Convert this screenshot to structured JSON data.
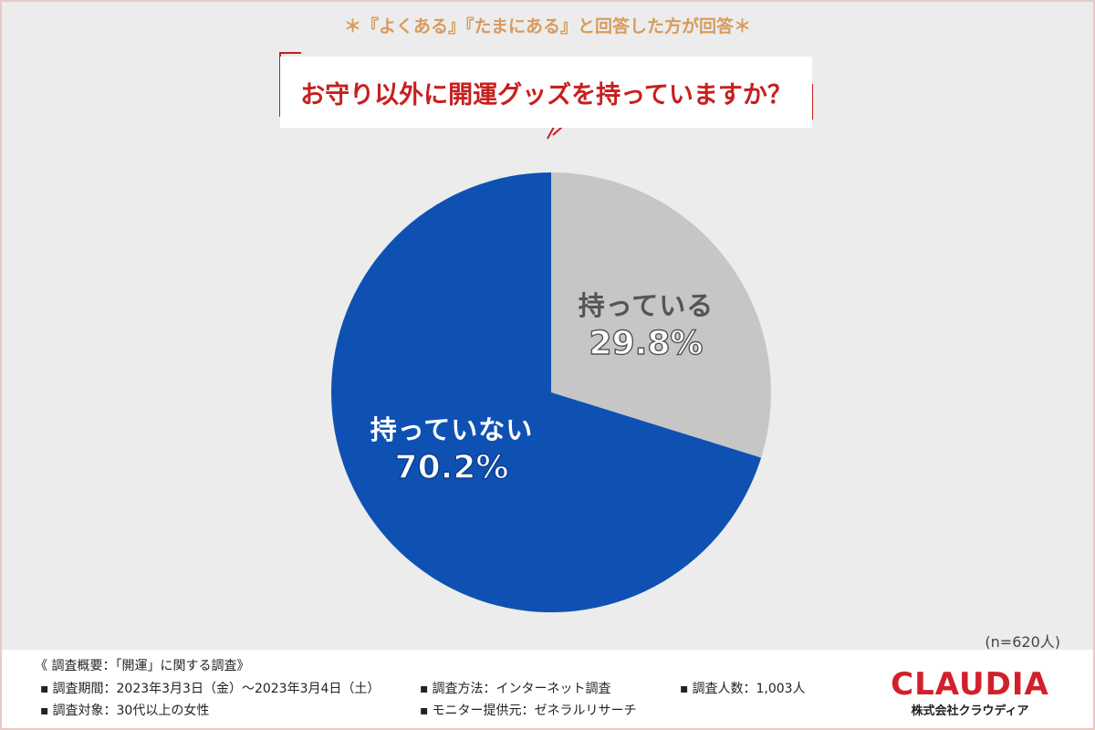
{
  "header": {
    "subtitle": "＊『よくある』『たまにある』と回答した方が回答＊",
    "question": "お守り以外に開運グッズを持っていますか？"
  },
  "chart_data": {
    "type": "pie",
    "categories": [
      "持っている",
      "持っていない"
    ],
    "values": [
      29.8,
      70.2
    ],
    "value_labels": [
      "29.8%",
      "70.2%"
    ],
    "colors": [
      "#c6c6c6",
      "#0f51b3"
    ],
    "start_angle": "12 o'clock, clockwise",
    "title": "お守り以外に開運グッズを持っていますか？"
  },
  "note": "(n=620人)",
  "survey": {
    "title": "《 調査概要：「開運」に関する調査》",
    "period": "調査期間：2023年3月3日（金）～2023年3月4日（土）",
    "method": "調査方法：インターネット調査",
    "count": "調査人数：1,003人",
    "target": "調査対象：30代以上の女性",
    "provider": "モニター提供元：ゼネラルリサーチ",
    "bullet": "▪"
  },
  "logo": {
    "main": "CLAUDIA",
    "sub": "株式会社クラウディア"
  }
}
